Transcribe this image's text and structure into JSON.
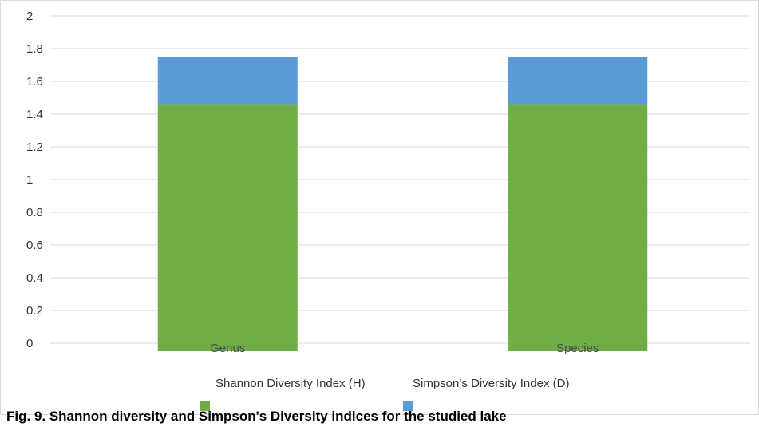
{
  "chart_data": {
    "type": "bar",
    "stacked": true,
    "categories": [
      "Genus",
      "Species"
    ],
    "series": [
      {
        "name": "Shannon Diversity Index (H)",
        "values": [
          1.51,
          1.51
        ],
        "color": "#70ad47"
      },
      {
        "name": "Simpson’s Diversity Index (D)",
        "values": [
          0.29,
          0.29
        ],
        "color": "#5b9bd5"
      }
    ],
    "yticks": [
      "0",
      "0.2",
      "0.4",
      "0.6",
      "0.8",
      "1",
      "1.2",
      "1.4",
      "1.6",
      "1.8",
      "2"
    ],
    "ylim": [
      0,
      2
    ],
    "grid": true,
    "legend_position": "bottom"
  },
  "caption": "Fig. 9. Shannon diversity and Simpson's Diversity indices for the studied lake"
}
